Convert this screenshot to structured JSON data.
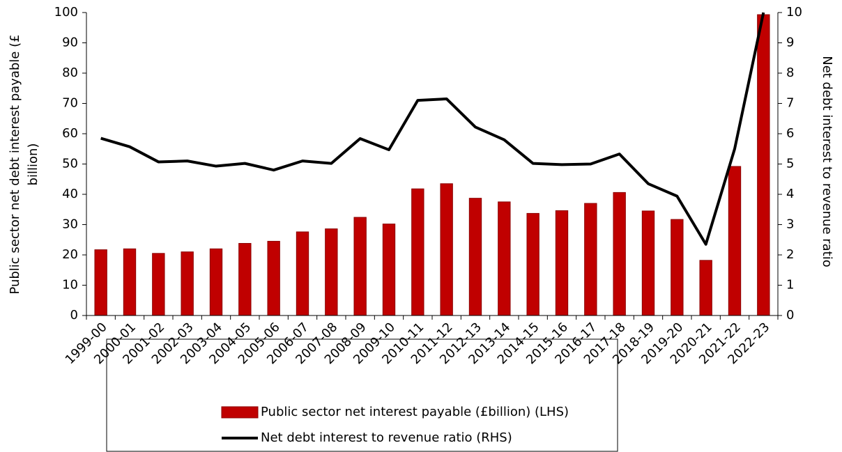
{
  "chart_data": {
    "type": "bar",
    "categories": [
      "1999-00",
      "2000-01",
      "2001-02",
      "2002-03",
      "2003-04",
      "2004-05",
      "2005-06",
      "2006-07",
      "2007-08",
      "2008-09",
      "2009-10",
      "2010-11",
      "2011-12",
      "2012-13",
      "2013-14",
      "2014-15",
      "2015-16",
      "2016-17",
      "2017-18",
      "2018-19",
      "2019-20",
      "2020-21",
      "2021-22",
      "2022-23"
    ],
    "series": [
      {
        "name": "Public sector net interest payable (£billion) (LHS)",
        "color": "#c00000",
        "type": "bar",
        "values": [
          21.7,
          22,
          20.5,
          21,
          22,
          23.8,
          24.5,
          27.6,
          28.6,
          32.4,
          30.2,
          41.8,
          43.5,
          38.7,
          37.5,
          33.7,
          34.6,
          37,
          40.6,
          34.5,
          31.7,
          18.2,
          49.2,
          99.3
        ]
      },
      {
        "name": "Net debt interest to revenue ratio (RHS)",
        "color": "#000000",
        "type": "line",
        "axis": "y2",
        "values": [
          5.85,
          5.57,
          5.07,
          5.1,
          4.93,
          5.02,
          4.8,
          5.1,
          5.02,
          5.84,
          5.47,
          7.1,
          7.15,
          6.22,
          5.8,
          5.02,
          4.98,
          5.0,
          5.33,
          4.35,
          3.94,
          2.35,
          5.5,
          10.0
        ]
      }
    ],
    "ylabel": [
      "Public sector net debt interest payable    (£",
      "billion)"
    ],
    "y2label": "Net debt interest to revenue ratio",
    "ylim": [
      0,
      100
    ],
    "yticks": [
      0,
      10,
      20,
      30,
      40,
      50,
      60,
      70,
      80,
      90,
      100
    ],
    "y2lim": [
      0,
      10
    ],
    "y2ticks": [
      0,
      1,
      2,
      3,
      4,
      5,
      6,
      7,
      8,
      9,
      10
    ],
    "legend": "bottom"
  }
}
